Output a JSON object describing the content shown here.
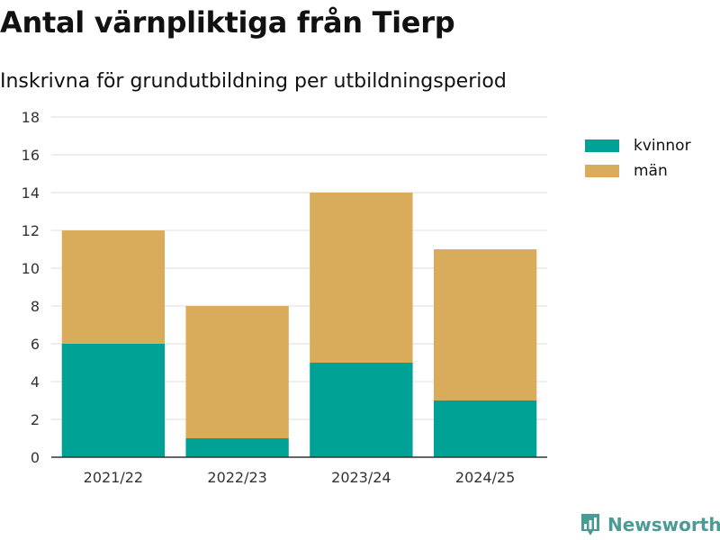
{
  "chart_data": {
    "type": "bar",
    "stacked": true,
    "title": "Antal värnpliktiga från Tierp",
    "subtitle": "Inskrivna för grundutbildning per utbildningsperiod",
    "categories": [
      "2021/22",
      "2022/23",
      "2023/24",
      "2024/25"
    ],
    "series": [
      {
        "name": "kvinnor",
        "values": [
          6,
          1,
          5,
          3
        ],
        "color": "#00a295"
      },
      {
        "name": "män",
        "values": [
          6,
          7,
          9,
          8
        ],
        "color": "#d9ac5b"
      }
    ],
    "ylim": [
      0,
      18
    ],
    "yticks": [
      0,
      2,
      4,
      6,
      8,
      10,
      12,
      14,
      16,
      18
    ],
    "grid": true,
    "legend": "right"
  },
  "branding": {
    "name": "Newsworthy",
    "icon": "newsworthy-logo-icon"
  }
}
